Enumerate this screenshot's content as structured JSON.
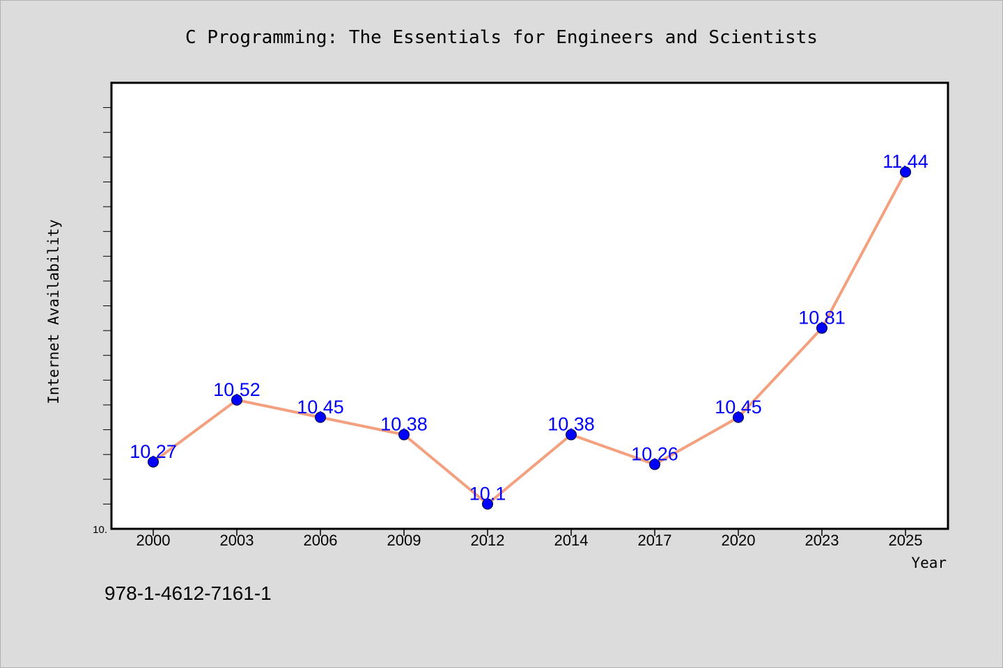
{
  "chart_data": {
    "type": "line",
    "title": "C Programming: The Essentials for Engineers and Scientists",
    "xlabel": "Year",
    "ylabel": "Internet Availability",
    "categories": [
      "2000",
      "2003",
      "2006",
      "2009",
      "2012",
      "2014",
      "2017",
      "2020",
      "2023",
      "2025"
    ],
    "values": [
      10.27,
      10.52,
      10.45,
      10.38,
      10.1,
      10.38,
      10.26,
      10.45,
      10.81,
      11.44
    ],
    "data_labels": [
      "10.27",
      "10.52",
      "10.45",
      "10.38",
      "10.1",
      "10.38",
      "10.26",
      "10.45",
      "10.81",
      "11.44"
    ],
    "ylim": [
      10.0,
      11.8
    ],
    "y_min_label": "10.",
    "grid": false,
    "legend": "none",
    "colors": {
      "line": "#f4a07f",
      "marker": "#0000ff",
      "data_label": "#0000ff",
      "plot_bg": "#ffffff",
      "page_bg": "#dcdcdc"
    }
  },
  "footer": {
    "isbn": "978-1-4612-7161-1"
  }
}
